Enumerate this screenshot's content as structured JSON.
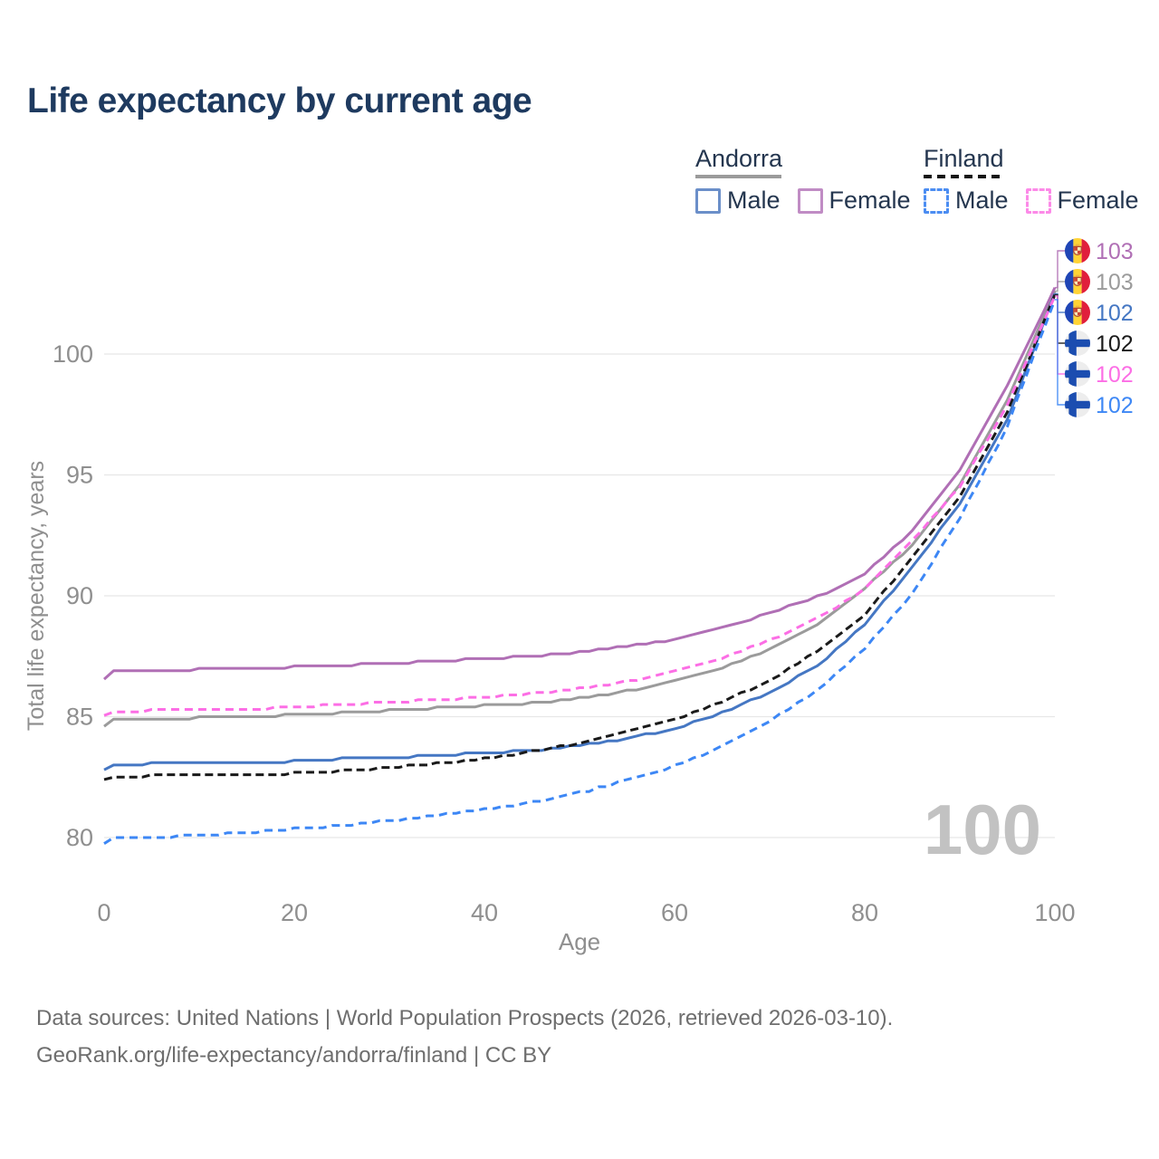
{
  "title": "Life expectancy by current age",
  "legend": {
    "groups": [
      {
        "name": "Andorra",
        "line_style": "solid",
        "underline_color": "#9b9b9b",
        "items": [
          {
            "label": "Male",
            "color": "#4577c3"
          },
          {
            "label": "Female",
            "color": "#b06fb5"
          }
        ]
      },
      {
        "name": "Finland",
        "line_style": "dashed",
        "underline_color": "#161616",
        "items": [
          {
            "label": "Male",
            "color": "#3d87f5"
          },
          {
            "label": "Female",
            "color": "#fc6ee5"
          }
        ]
      }
    ]
  },
  "chart_data": {
    "type": "line",
    "title": "Life expectancy by current age",
    "xlabel": "Age",
    "ylabel": "Total life expectancy, years",
    "xlim": [
      0,
      100
    ],
    "ylim": [
      78.5,
      104
    ],
    "x_ticks": [
      0,
      20,
      40,
      60,
      80,
      100
    ],
    "y_ticks": [
      80,
      85,
      90,
      95,
      100
    ],
    "grid": "horizontal-only",
    "grid_color": "#e7e7e7",
    "tick_color": "#8f8f8f",
    "age_indicator": "100",
    "age_indicator_color": "#c2c2c2",
    "x": [
      0,
      1,
      5,
      10,
      15,
      20,
      25,
      30,
      35,
      40,
      45,
      50,
      55,
      60,
      65,
      70,
      75,
      80,
      85,
      90,
      95,
      100
    ],
    "series": [
      {
        "id": "andorra-all",
        "name": "Andorra — All",
        "country": "Andorra",
        "sex": "All",
        "color": "#9b9b9b",
        "dash": "",
        "flag": "AD",
        "values": [
          84.6,
          84.85,
          84.9,
          84.95,
          85.0,
          85.08,
          85.15,
          85.25,
          85.35,
          85.45,
          85.55,
          85.75,
          86.05,
          86.45,
          87.0,
          87.75,
          88.8,
          90.3,
          92.1,
          94.6,
          98.1,
          102.6
        ],
        "end_label": {
          "text": "103",
          "slot": 1
        }
      },
      {
        "id": "andorra-female",
        "name": "Andorra — Female",
        "country": "Andorra",
        "sex": "Female",
        "color": "#b06fb5",
        "dash": "",
        "flag": "AD",
        "values": [
          86.55,
          86.9,
          86.92,
          86.95,
          87.0,
          87.05,
          87.12,
          87.2,
          87.3,
          87.4,
          87.5,
          87.65,
          87.9,
          88.2,
          88.65,
          89.3,
          89.95,
          90.9,
          92.7,
          95.2,
          98.7,
          102.75
        ],
        "end_label": {
          "text": "103",
          "slot": 0
        }
      },
      {
        "id": "andorra-male",
        "name": "Andorra — Male",
        "country": "Andorra",
        "sex": "Male",
        "color": "#4577c3",
        "dash": "",
        "flag": "AD",
        "values": [
          82.8,
          83.0,
          83.05,
          83.08,
          83.1,
          83.15,
          83.25,
          83.3,
          83.4,
          83.5,
          83.6,
          83.8,
          84.1,
          84.5,
          85.15,
          86.0,
          87.1,
          88.8,
          91.2,
          93.8,
          97.3,
          102.5
        ],
        "end_label": {
          "text": "102",
          "slot": 2
        }
      },
      {
        "id": "finland-all",
        "name": "Finland — All",
        "country": "Finland",
        "sex": "All",
        "color": "#1a1a1a",
        "dash": "9 5",
        "flag": "FI",
        "values": [
          82.4,
          82.5,
          82.55,
          82.58,
          82.6,
          82.65,
          82.75,
          82.9,
          83.05,
          83.25,
          83.55,
          83.9,
          84.35,
          84.9,
          85.6,
          86.5,
          87.7,
          89.2,
          91.6,
          94.1,
          97.6,
          102.45
        ],
        "end_label": {
          "text": "102",
          "slot": 3
        }
      },
      {
        "id": "finland-female",
        "name": "Finland — Female",
        "country": "Finland",
        "sex": "Female",
        "color": "#fc6ee5",
        "dash": "9 6",
        "flag": "FI",
        "values": [
          85.05,
          85.2,
          85.25,
          85.28,
          85.3,
          85.4,
          85.5,
          85.6,
          85.7,
          85.8,
          85.95,
          86.15,
          86.45,
          86.85,
          87.4,
          88.15,
          89.05,
          90.25,
          92.3,
          94.5,
          97.9,
          102.4
        ],
        "end_label": {
          "text": "102",
          "slot": 4
        }
      },
      {
        "id": "finland-male",
        "name": "Finland — Male",
        "country": "Finland",
        "sex": "Male",
        "color": "#3d87f5",
        "dash": "9 6",
        "flag": "FI",
        "values": [
          79.75,
          79.95,
          80.0,
          80.1,
          80.2,
          80.35,
          80.5,
          80.7,
          80.9,
          81.15,
          81.45,
          81.85,
          82.35,
          82.95,
          83.75,
          84.8,
          86.1,
          87.8,
          90.1,
          93.2,
          97.0,
          102.25
        ],
        "end_label": {
          "text": "102",
          "slot": 5
        }
      }
    ],
    "flag_colors": {
      "andorra_blue": "#1f45b5",
      "andorra_yellow": "#ffd335",
      "andorra_red": "#e01f3c",
      "finland_blue": "#1b4db0",
      "finland_bg": "#ededed"
    }
  },
  "footer": {
    "line1": "Data sources: United Nations | World Population Prospects (2026, retrieved 2026-03-10).",
    "line2": "GeoRank.org/life-expectancy/andorra/finland | CC BY"
  }
}
